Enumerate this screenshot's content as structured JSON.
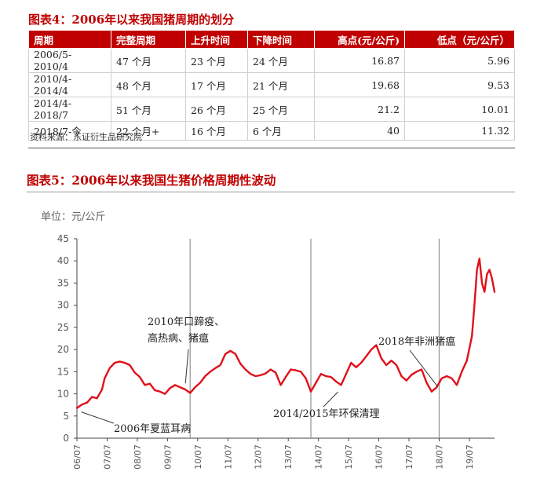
{
  "table4": {
    "title": "图表4：2006年以来我国猪周期的划分",
    "headers": [
      "周期",
      "完整周期",
      "上升时间",
      "下降时间",
      "高点(元/公斤)",
      "低点（元/公斤）"
    ],
    "rows": [
      [
        "2006/5-2010/4",
        "47 个月",
        "23 个月",
        "24 个月",
        "16.87",
        "5.96"
      ],
      [
        "2010/4-2014/4",
        "48 个月",
        "17 个月",
        "21 个月",
        "19.68",
        "9.53"
      ],
      [
        "2014/4-2018/7",
        "51 个月",
        "26 个月",
        "25 个月",
        "21.2",
        "10.01"
      ],
      [
        "2018/7-今",
        "22 个月+",
        "16 个月",
        "6 个月",
        "40",
        "11.32"
      ]
    ],
    "source": "资料来源：东证衍生品研究院"
  },
  "chart_data": {
    "type": "line",
    "title": "图表5：2006年以来我国生猪价格周期性波动",
    "unit_label": "单位：元/公斤",
    "x_tick_labels": [
      "06/07",
      "07/07",
      "08/07",
      "09/07",
      "10/07",
      "11/07",
      "12/07",
      "13/07",
      "14/07",
      "15/07",
      "16/07",
      "17/07",
      "18/07",
      "19/07"
    ],
    "ylim": [
      0,
      45
    ],
    "y_ticks": [
      0,
      5,
      10,
      15,
      20,
      25,
      30,
      35,
      40,
      45
    ],
    "x_range": [
      "2006-07",
      "2020-05"
    ],
    "grid": false,
    "series": [
      {
        "color": "#e0101a",
        "points": [
          [
            "2006-07",
            6.8
          ],
          [
            "2006-09",
            7.6
          ],
          [
            "2006-11",
            8.0
          ],
          [
            "2007-01",
            9.3
          ],
          [
            "2007-03",
            9.0
          ],
          [
            "2007-05",
            11.0
          ],
          [
            "2007-06",
            13.5
          ],
          [
            "2007-08",
            15.8
          ],
          [
            "2007-10",
            17.0
          ],
          [
            "2007-12",
            17.3
          ],
          [
            "2008-02",
            17.0
          ],
          [
            "2008-04",
            16.5
          ],
          [
            "2008-06",
            14.8
          ],
          [
            "2008-08",
            13.8
          ],
          [
            "2008-10",
            12.0
          ],
          [
            "2008-12",
            12.3
          ],
          [
            "2009-02",
            10.8
          ],
          [
            "2009-04",
            10.5
          ],
          [
            "2009-06",
            10.0
          ],
          [
            "2009-08",
            11.3
          ],
          [
            "2009-10",
            12.0
          ],
          [
            "2009-12",
            11.5
          ],
          [
            "2010-02",
            11.0
          ],
          [
            "2010-04",
            10.2
          ],
          [
            "2010-06",
            11.5
          ],
          [
            "2010-08",
            12.5
          ],
          [
            "2010-10",
            14.0
          ],
          [
            "2010-12",
            15.0
          ],
          [
            "2011-02",
            15.8
          ],
          [
            "2011-04",
            16.5
          ],
          [
            "2011-06",
            19.0
          ],
          [
            "2011-08",
            19.7
          ],
          [
            "2011-10",
            19.0
          ],
          [
            "2011-12",
            16.8
          ],
          [
            "2012-02",
            15.5
          ],
          [
            "2012-04",
            14.5
          ],
          [
            "2012-06",
            14.0
          ],
          [
            "2012-08",
            14.2
          ],
          [
            "2012-10",
            14.6
          ],
          [
            "2012-12",
            15.5
          ],
          [
            "2013-02",
            14.8
          ],
          [
            "2013-04",
            12.0
          ],
          [
            "2013-06",
            13.8
          ],
          [
            "2013-08",
            15.5
          ],
          [
            "2013-10",
            15.3
          ],
          [
            "2013-12",
            15.0
          ],
          [
            "2014-02",
            13.5
          ],
          [
            "2014-04",
            10.5
          ],
          [
            "2014-06",
            12.5
          ],
          [
            "2014-08",
            14.5
          ],
          [
            "2014-10",
            14.0
          ],
          [
            "2014-12",
            13.8
          ],
          [
            "2015-02",
            12.8
          ],
          [
            "2015-04",
            12.0
          ],
          [
            "2015-06",
            14.5
          ],
          [
            "2015-08",
            17.0
          ],
          [
            "2015-10",
            16.0
          ],
          [
            "2015-12",
            17.0
          ],
          [
            "2016-02",
            18.5
          ],
          [
            "2016-04",
            20.0
          ],
          [
            "2016-06",
            21.0
          ],
          [
            "2016-08",
            18.0
          ],
          [
            "2016-10",
            16.5
          ],
          [
            "2016-12",
            17.5
          ],
          [
            "2017-02",
            16.5
          ],
          [
            "2017-04",
            14.0
          ],
          [
            "2017-06",
            13.0
          ],
          [
            "2017-08",
            14.3
          ],
          [
            "2017-10",
            15.0
          ],
          [
            "2017-12",
            15.5
          ],
          [
            "2018-02",
            12.5
          ],
          [
            "2018-04",
            10.5
          ],
          [
            "2018-06",
            11.5
          ],
          [
            "2018-08",
            13.5
          ],
          [
            "2018-10",
            14.0
          ],
          [
            "2018-12",
            13.5
          ],
          [
            "2019-02",
            12.0
          ],
          [
            "2019-04",
            15.0
          ],
          [
            "2019-06",
            17.5
          ],
          [
            "2019-08",
            23.0
          ],
          [
            "2019-09",
            30.0
          ],
          [
            "2019-10",
            38.0
          ],
          [
            "2019-11",
            40.5
          ],
          [
            "2019-12",
            35.0
          ],
          [
            "2020-01",
            33.0
          ],
          [
            "2020-02",
            37.0
          ],
          [
            "2020-03",
            38.0
          ],
          [
            "2020-04",
            36.0
          ],
          [
            "2020-05",
            33.0
          ]
        ]
      }
    ],
    "vertical_markers": [
      "2010-04",
      "2014-04",
      "2018-07"
    ],
    "annotations": [
      {
        "lines": [
          "2010年口蹄疫、",
          "高热病、猪瘟"
        ],
        "at": [
          "2010-04",
          12.0
        ]
      },
      {
        "lines": [
          "2018年非洲猪瘟"
        ],
        "at": [
          "2018-07",
          12.0
        ]
      },
      {
        "lines": [
          "2006年夏蓝耳病"
        ],
        "at": [
          "2006-10",
          5.2
        ]
      },
      {
        "lines": [
          "2014/2015年环保清理"
        ],
        "at": [
          "2015-04",
          11.5
        ]
      }
    ]
  }
}
